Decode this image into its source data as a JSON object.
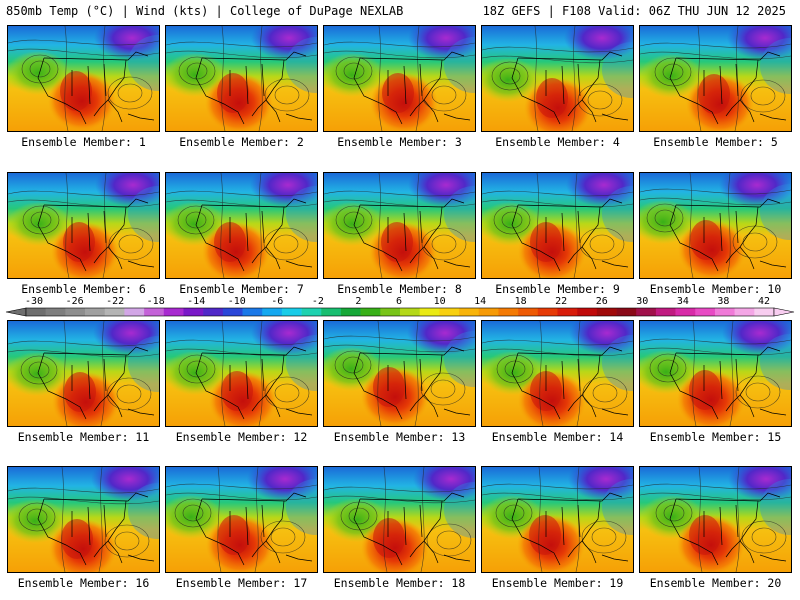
{
  "header": {
    "left": "850mb Temp (°C) | Wind (kts) | College of DuPage NEXLAB",
    "right": "18Z GEFS | F108 Valid: 06Z THU JUN 12 2025"
  },
  "members": [
    {
      "label": "Ensemble Member: 1"
    },
    {
      "label": "Ensemble Member: 2"
    },
    {
      "label": "Ensemble Member: 3"
    },
    {
      "label": "Ensemble Member: 4"
    },
    {
      "label": "Ensemble Member: 5"
    },
    {
      "label": "Ensemble Member: 6"
    },
    {
      "label": "Ensemble Member: 7"
    },
    {
      "label": "Ensemble Member: 8"
    },
    {
      "label": "Ensemble Member: 9"
    },
    {
      "label": "Ensemble Member: 10"
    },
    {
      "label": "Ensemble Member: 11"
    },
    {
      "label": "Ensemble Member: 12"
    },
    {
      "label": "Ensemble Member: 13"
    },
    {
      "label": "Ensemble Member: 14"
    },
    {
      "label": "Ensemble Member: 15"
    },
    {
      "label": "Ensemble Member: 16"
    },
    {
      "label": "Ensemble Member: 17"
    },
    {
      "label": "Ensemble Member: 18"
    },
    {
      "label": "Ensemble Member: 19"
    },
    {
      "label": "Ensemble Member: 20"
    }
  ],
  "colorbar": {
    "ticks": [
      "-30",
      "-26",
      "-22",
      "-18",
      "-14",
      "-10",
      "-6",
      "-2",
      "2",
      "6",
      "10",
      "14",
      "18",
      "22",
      "26",
      "30",
      "34",
      "38",
      "42"
    ],
    "colors": [
      "#6e6e6e",
      "#7e7e7e",
      "#8e8e8e",
      "#a0a0a0",
      "#b4b4b4",
      "#d2a6e6",
      "#c462d8",
      "#a82ad0",
      "#7a18c8",
      "#5028c8",
      "#2a46d8",
      "#1a78e8",
      "#14a8f0",
      "#18cce8",
      "#1ed2b0",
      "#18be70",
      "#16a838",
      "#38b018",
      "#78c418",
      "#b4d818",
      "#eaea14",
      "#f8d010",
      "#f8b40a",
      "#f69a06",
      "#f47a04",
      "#ee5a04",
      "#e63a06",
      "#d81c0a",
      "#c00a0a",
      "#a00a0a",
      "#8a0a18",
      "#a0104a",
      "#c01a80",
      "#d82aa8",
      "#e84ac4",
      "#f07ad8",
      "#f4a6e6",
      "#f8cdf0"
    ]
  }
}
